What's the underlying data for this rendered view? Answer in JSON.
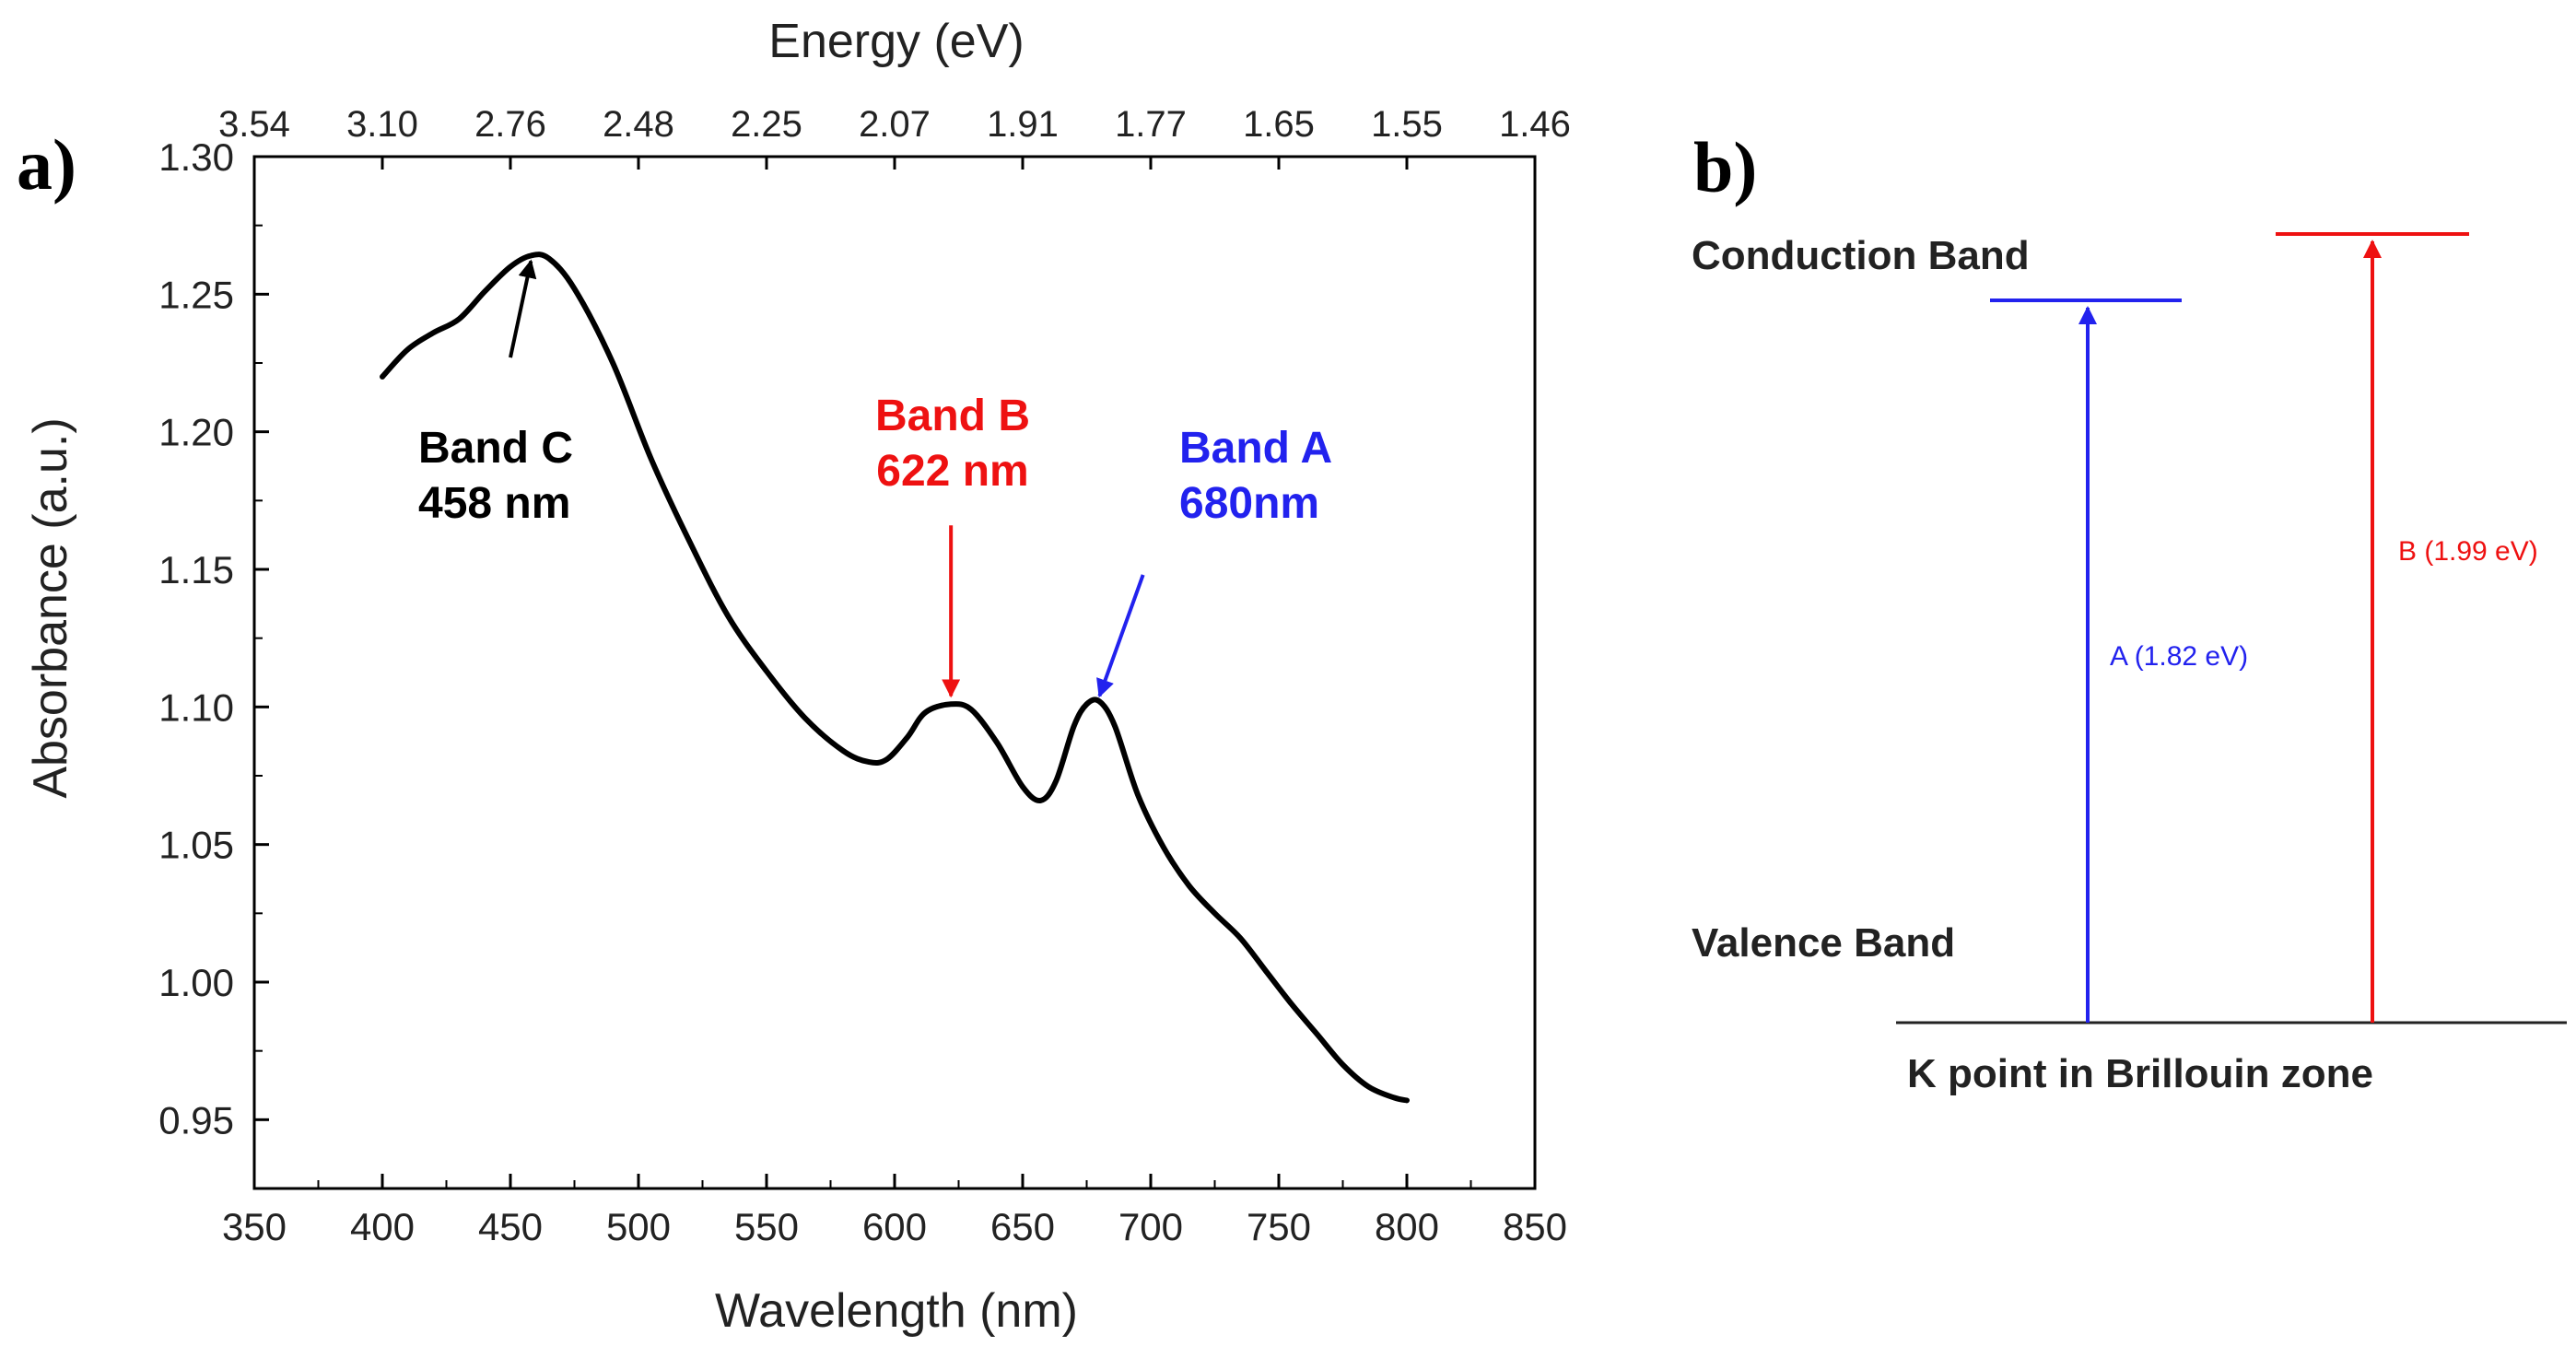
{
  "panel_a": {
    "label": "a)",
    "chart_data": {
      "type": "line",
      "title": "",
      "xlabel": "Wavelength (nm)",
      "ylabel": "Absorbance (a.u.)",
      "top_xlabel": "Energy (eV)",
      "xlim": [
        350,
        850
      ],
      "ylim": [
        0.925,
        1.3
      ],
      "x_ticks": [
        350,
        400,
        450,
        500,
        550,
        600,
        650,
        700,
        750,
        800,
        850
      ],
      "y_ticks": [
        0.95,
        1.0,
        1.05,
        1.1,
        1.15,
        1.2,
        1.25,
        1.3
      ],
      "top_ticks": [
        {
          "wavelength": 350,
          "label": "3.54"
        },
        {
          "wavelength": 400,
          "label": "3.10"
        },
        {
          "wavelength": 450,
          "label": "2.76"
        },
        {
          "wavelength": 500,
          "label": "2.48"
        },
        {
          "wavelength": 550,
          "label": "2.25"
        },
        {
          "wavelength": 600,
          "label": "2.07"
        },
        {
          "wavelength": 650,
          "label": "1.91"
        },
        {
          "wavelength": 700,
          "label": "1.77"
        },
        {
          "wavelength": 750,
          "label": "1.65"
        },
        {
          "wavelength": 800,
          "label": "1.55"
        },
        {
          "wavelength": 850,
          "label": "1.46"
        }
      ],
      "series": [
        {
          "name": "Absorbance",
          "color": "#000000",
          "x": [
            400,
            410,
            420,
            430,
            440,
            450,
            458,
            465,
            475,
            490,
            505,
            520,
            535,
            550,
            565,
            580,
            590,
            597,
            605,
            612,
            622,
            630,
            640,
            650,
            657,
            663,
            670,
            675,
            680,
            686,
            695,
            705,
            715,
            725,
            735,
            745,
            755,
            765,
            775,
            785,
            795,
            800
          ],
          "y": [
            1.22,
            1.23,
            1.236,
            1.241,
            1.251,
            1.26,
            1.264,
            1.263,
            1.252,
            1.225,
            1.19,
            1.16,
            1.133,
            1.113,
            1.096,
            1.084,
            1.08,
            1.081,
            1.089,
            1.098,
            1.101,
            1.099,
            1.087,
            1.071,
            1.066,
            1.073,
            1.093,
            1.101,
            1.102,
            1.093,
            1.068,
            1.049,
            1.035,
            1.025,
            1.016,
            1.004,
            0.992,
            0.981,
            0.97,
            0.962,
            0.958,
            0.957
          ]
        }
      ],
      "annotations": [
        {
          "lines": [
            "Band C",
            "458 nm"
          ],
          "color": "#000000",
          "target": [
            458,
            1.262
          ],
          "tail": [
            450,
            1.227
          ]
        },
        {
          "lines": [
            "Band B",
            "622 nm"
          ],
          "color": "#ee1111",
          "target": [
            622,
            1.104
          ],
          "tail": [
            622,
            1.166
          ]
        },
        {
          "lines": [
            "Band A",
            "680nm"
          ],
          "color": "#2222ee",
          "target": [
            680,
            1.104
          ],
          "tail": [
            697,
            1.148
          ]
        }
      ]
    }
  },
  "panel_b": {
    "label": "b)",
    "conduction_label": "Conduction Band",
    "valence_label": "Valence Band",
    "baseline_label": "K point in Brillouin zone",
    "transitions": [
      {
        "label": "A (1.82 eV)",
        "energy_ev": 1.82,
        "color": "#2222ee"
      },
      {
        "label": "B (1.99 eV)",
        "energy_ev": 1.99,
        "color": "#ee1111"
      }
    ]
  }
}
